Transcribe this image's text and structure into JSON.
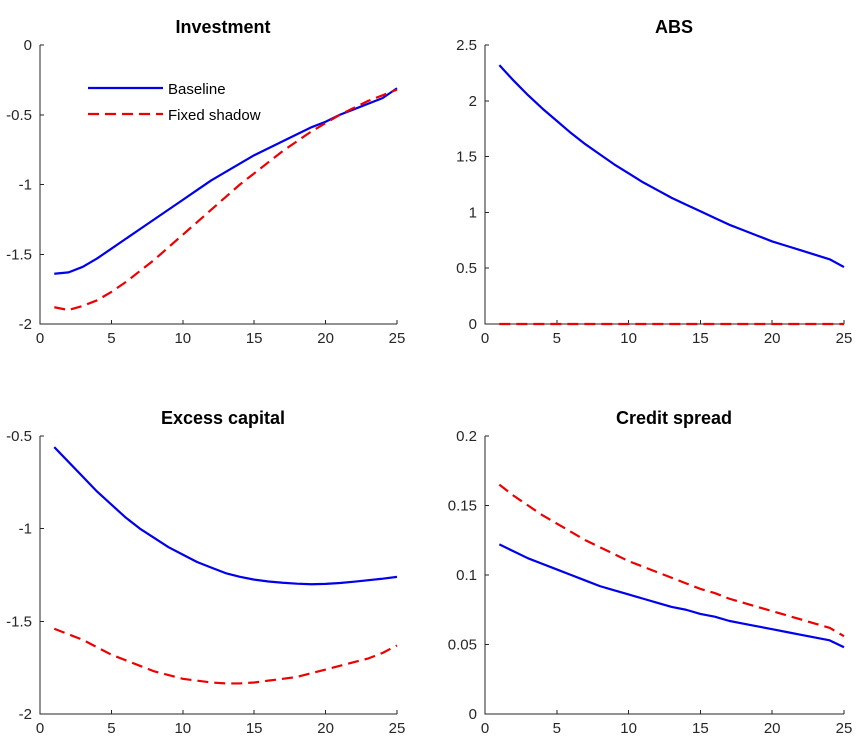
{
  "colors": {
    "baseline": "#0000ee",
    "fixed": "#ee0000"
  },
  "legend": {
    "baseline_label": "Baseline",
    "fixed_label": "Fixed shadow"
  },
  "chart_data": [
    {
      "type": "line",
      "title": "Investment",
      "xlim": [
        0,
        25
      ],
      "ylim": [
        -2,
        0
      ],
      "xticks": [
        0,
        5,
        10,
        15,
        20,
        25
      ],
      "yticks": [
        -2,
        -1.5,
        -1,
        -0.5,
        0
      ],
      "ytick_labels": [
        "-2",
        "-1.5",
        "-1",
        "-0.5",
        "0"
      ],
      "legend": "top-left",
      "x": [
        1,
        2,
        3,
        4,
        5,
        6,
        7,
        8,
        9,
        10,
        11,
        12,
        13,
        14,
        15,
        16,
        17,
        18,
        19,
        20,
        21,
        22,
        23,
        24,
        25
      ],
      "series": [
        {
          "name": "Baseline",
          "style": "solid",
          "values": [
            -1.64,
            -1.63,
            -1.59,
            -1.53,
            -1.46,
            -1.39,
            -1.32,
            -1.25,
            -1.18,
            -1.11,
            -1.04,
            -0.97,
            -0.91,
            -0.85,
            -0.79,
            -0.74,
            -0.69,
            -0.64,
            -0.59,
            -0.55,
            -0.5,
            -0.46,
            -0.42,
            -0.38,
            -0.31
          ]
        },
        {
          "name": "Fixed shadow",
          "style": "dashed",
          "values": [
            -1.88,
            -1.9,
            -1.87,
            -1.83,
            -1.77,
            -1.7,
            -1.62,
            -1.54,
            -1.45,
            -1.36,
            -1.27,
            -1.18,
            -1.09,
            -1.0,
            -0.92,
            -0.84,
            -0.76,
            -0.69,
            -0.62,
            -0.56,
            -0.5,
            -0.45,
            -0.4,
            -0.36,
            -0.32
          ]
        }
      ]
    },
    {
      "type": "line",
      "title": "ABS",
      "xlim": [
        0,
        25
      ],
      "ylim": [
        0,
        2.5
      ],
      "xticks": [
        0,
        5,
        10,
        15,
        20,
        25
      ],
      "yticks": [
        0,
        0.5,
        1,
        1.5,
        2,
        2.5
      ],
      "ytick_labels": [
        "0",
        "0.5",
        "1",
        "1.5",
        "2",
        "2.5"
      ],
      "x": [
        1,
        2,
        3,
        4,
        5,
        6,
        7,
        8,
        9,
        10,
        11,
        12,
        13,
        14,
        15,
        16,
        17,
        18,
        19,
        20,
        21,
        22,
        23,
        24,
        25
      ],
      "series": [
        {
          "name": "Baseline",
          "style": "solid",
          "values": [
            2.32,
            2.18,
            2.05,
            1.93,
            1.82,
            1.71,
            1.61,
            1.52,
            1.43,
            1.35,
            1.27,
            1.2,
            1.13,
            1.07,
            1.01,
            0.95,
            0.89,
            0.84,
            0.79,
            0.74,
            0.7,
            0.66,
            0.62,
            0.58,
            0.51
          ]
        },
        {
          "name": "Fixed shadow",
          "style": "dashed",
          "values": [
            0,
            0,
            0,
            0,
            0,
            0,
            0,
            0,
            0,
            0,
            0,
            0,
            0,
            0,
            0,
            0,
            0,
            0,
            0,
            0,
            0,
            0,
            0,
            0,
            0
          ]
        }
      ]
    },
    {
      "type": "line",
      "title": "Excess capital",
      "xlim": [
        0,
        25
      ],
      "ylim": [
        -2,
        -0.5
      ],
      "xticks": [
        0,
        5,
        10,
        15,
        20,
        25
      ],
      "yticks": [
        -2,
        -1.5,
        -1,
        -0.5
      ],
      "ytick_labels": [
        "-2",
        "-1.5",
        "-1",
        "-0.5"
      ],
      "x": [
        1,
        2,
        3,
        4,
        5,
        6,
        7,
        8,
        9,
        10,
        11,
        12,
        13,
        14,
        15,
        16,
        17,
        18,
        19,
        20,
        21,
        22,
        23,
        24,
        25
      ],
      "series": [
        {
          "name": "Baseline",
          "style": "solid",
          "values": [
            -0.56,
            -0.64,
            -0.72,
            -0.8,
            -0.87,
            -0.94,
            -1.0,
            -1.05,
            -1.1,
            -1.14,
            -1.18,
            -1.21,
            -1.24,
            -1.26,
            -1.275,
            -1.285,
            -1.292,
            -1.297,
            -1.3,
            -1.298,
            -1.293,
            -1.286,
            -1.278,
            -1.27,
            -1.26
          ]
        },
        {
          "name": "Fixed shadow",
          "style": "dashed",
          "values": [
            -1.54,
            -1.57,
            -1.6,
            -1.64,
            -1.68,
            -1.71,
            -1.74,
            -1.77,
            -1.79,
            -1.81,
            -1.82,
            -1.83,
            -1.835,
            -1.835,
            -1.83,
            -1.82,
            -1.81,
            -1.8,
            -1.78,
            -1.76,
            -1.74,
            -1.72,
            -1.7,
            -1.67,
            -1.63
          ]
        }
      ]
    },
    {
      "type": "line",
      "title": "Credit spread",
      "xlim": [
        0,
        25
      ],
      "ylim": [
        0,
        0.2
      ],
      "xticks": [
        0,
        5,
        10,
        15,
        20,
        25
      ],
      "yticks": [
        0,
        0.05,
        0.1,
        0.15,
        0.2
      ],
      "ytick_labels": [
        "0",
        "0.05",
        "0.1",
        "0.15",
        "0.2"
      ],
      "x": [
        1,
        2,
        3,
        4,
        5,
        6,
        7,
        8,
        9,
        10,
        11,
        12,
        13,
        14,
        15,
        16,
        17,
        18,
        19,
        20,
        21,
        22,
        23,
        24,
        25
      ],
      "series": [
        {
          "name": "Baseline",
          "style": "solid",
          "values": [
            0.122,
            0.117,
            0.112,
            0.108,
            0.104,
            0.1,
            0.096,
            0.092,
            0.089,
            0.086,
            0.083,
            0.08,
            0.077,
            0.075,
            0.072,
            0.07,
            0.067,
            0.065,
            0.063,
            0.061,
            0.059,
            0.057,
            0.055,
            0.053,
            0.048
          ]
        },
        {
          "name": "Fixed shadow",
          "style": "dashed",
          "values": [
            0.165,
            0.157,
            0.15,
            0.143,
            0.137,
            0.131,
            0.125,
            0.12,
            0.115,
            0.11,
            0.106,
            0.102,
            0.098,
            0.094,
            0.09,
            0.087,
            0.083,
            0.08,
            0.077,
            0.074,
            0.071,
            0.068,
            0.065,
            0.062,
            0.056
          ]
        }
      ]
    }
  ]
}
